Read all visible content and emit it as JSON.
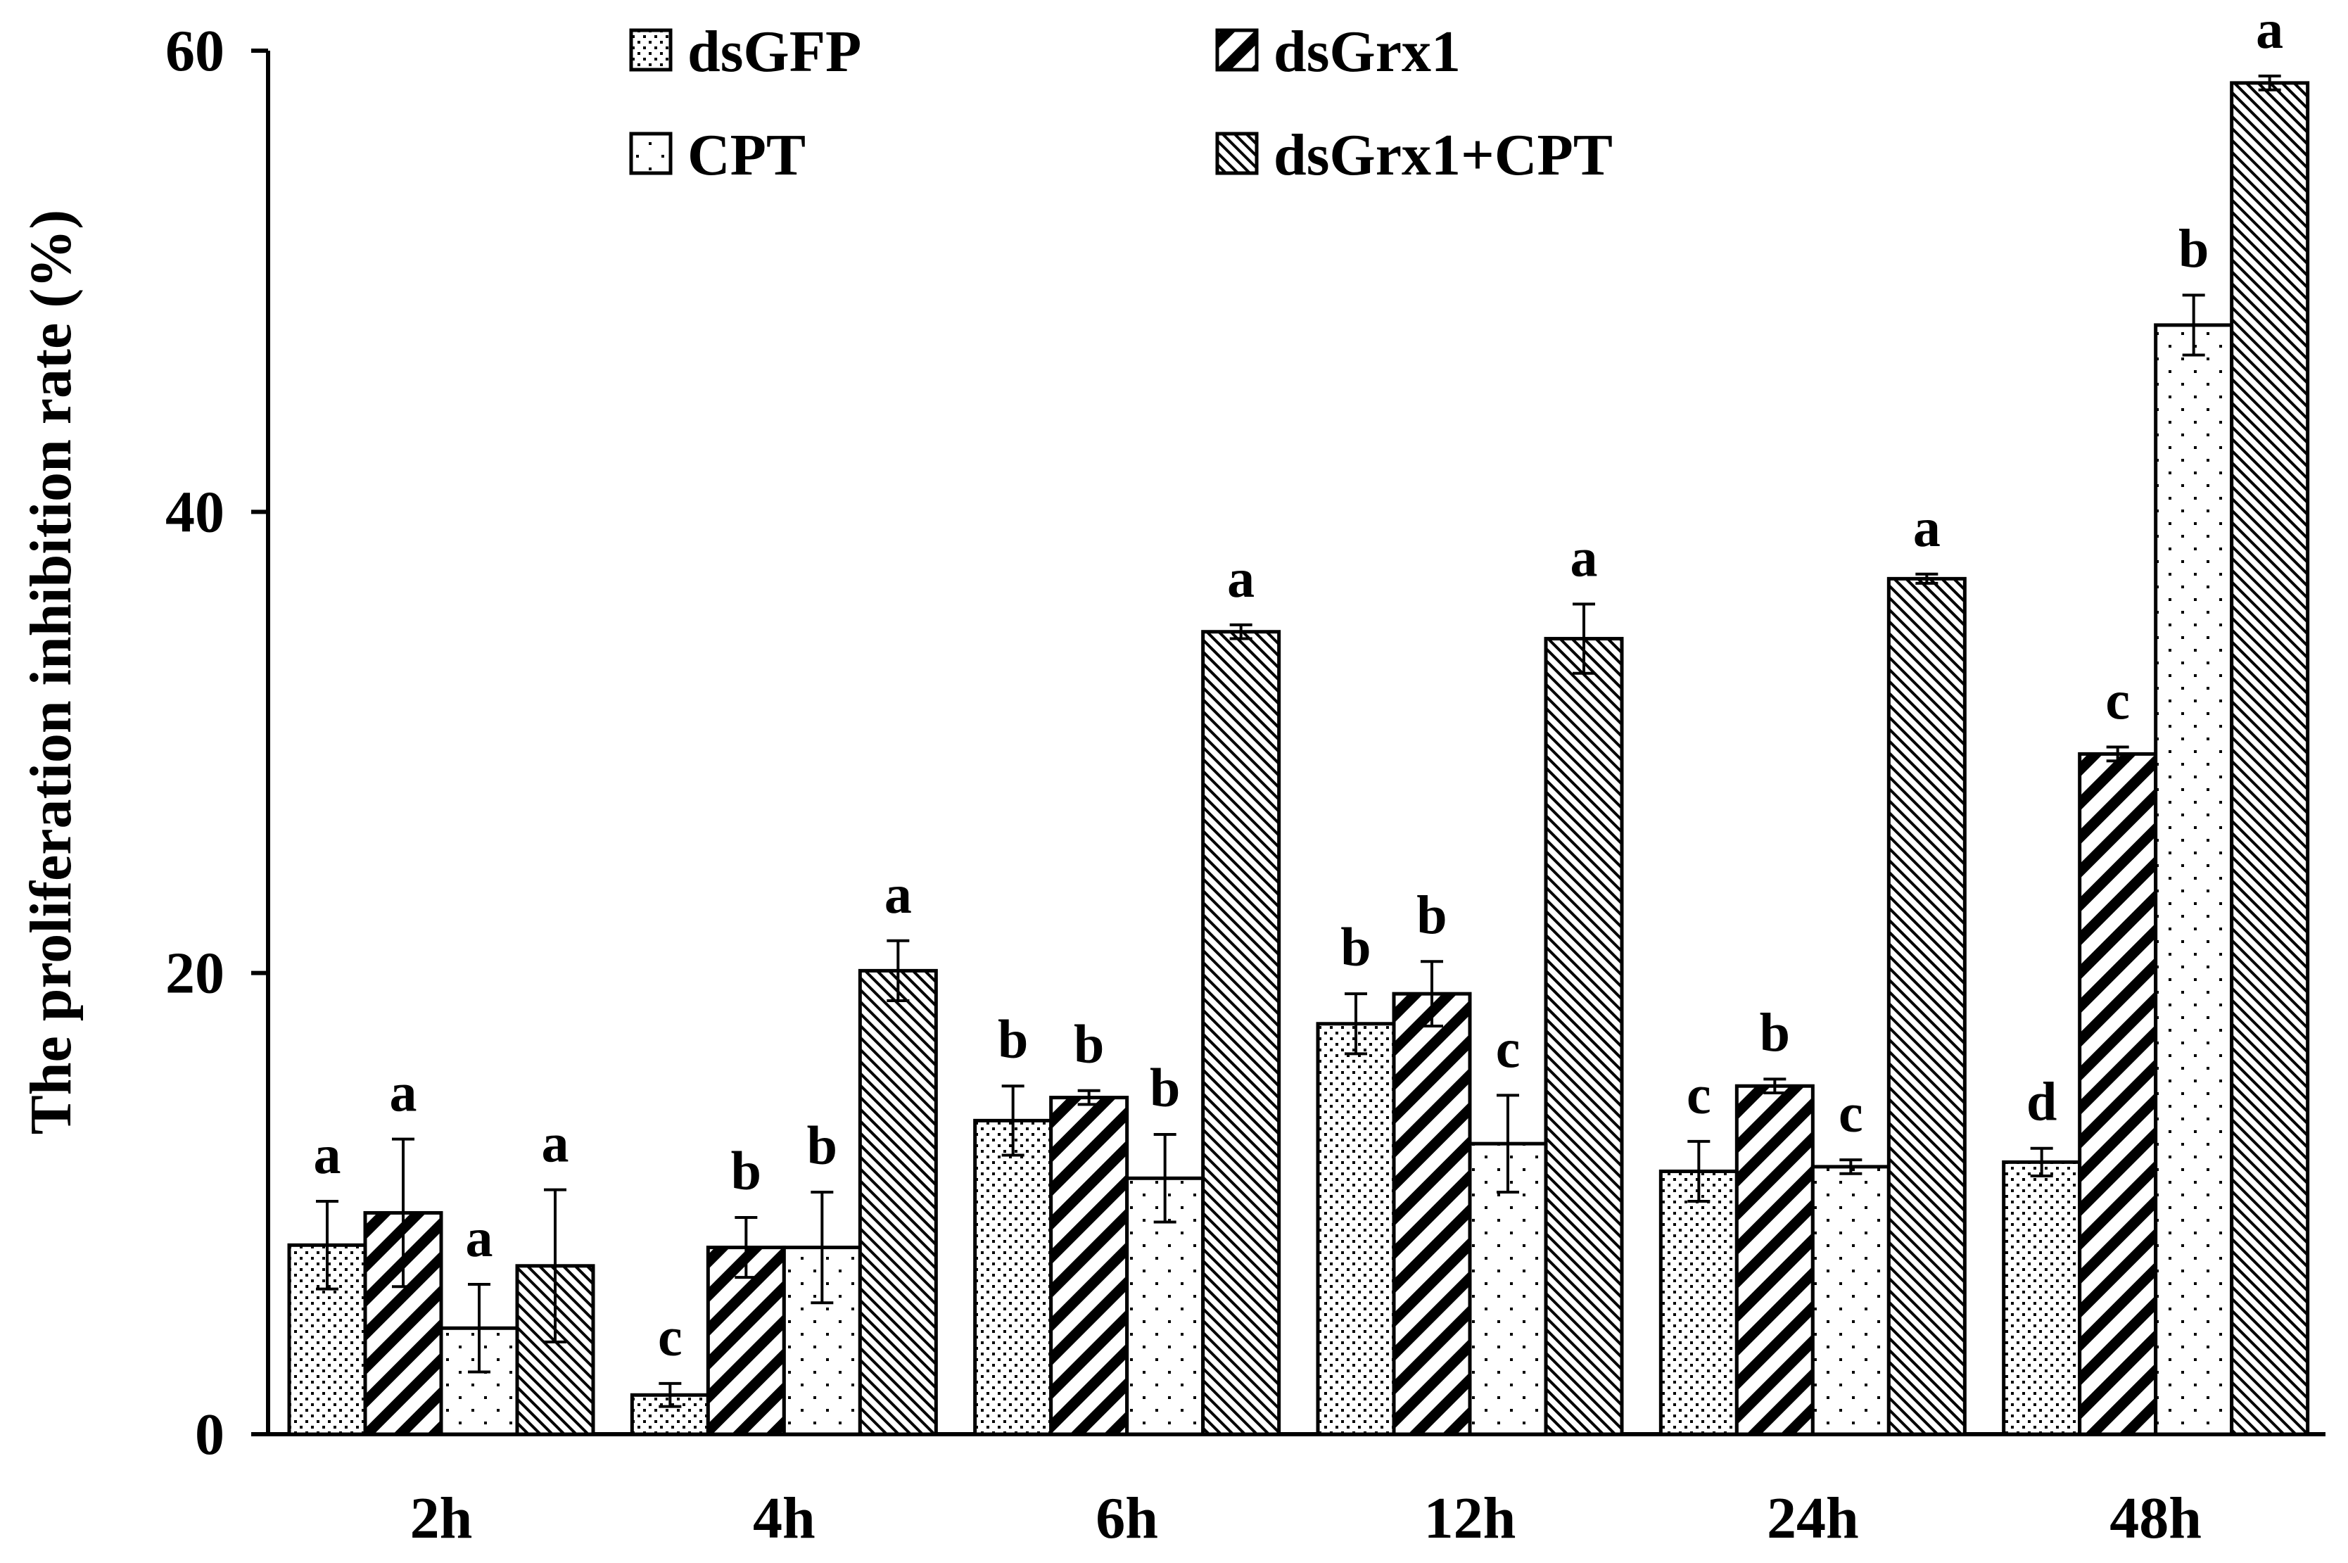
{
  "chart_data": {
    "type": "bar",
    "title": "",
    "xlabel": "",
    "ylabel": "The proliferation inhibition rate (%)",
    "ylim": [
      0,
      60
    ],
    "yticks": [
      0,
      20,
      40,
      60
    ],
    "grid": false,
    "legend_position": "top",
    "categories": [
      "2h",
      "4h",
      "6h",
      "12h",
      "24h",
      "48h"
    ],
    "series": [
      {
        "name": "dsGFP",
        "pattern": "dots",
        "values": [
          8.2,
          1.7,
          13.6,
          17.8,
          11.4,
          11.8
        ],
        "errors": [
          1.9,
          0.5,
          1.5,
          1.3,
          1.3,
          0.6
        ],
        "letters": [
          "a",
          "c",
          "b",
          "b",
          "c",
          "d"
        ]
      },
      {
        "name": "dsGrx1",
        "pattern": "wide-diagonal",
        "values": [
          9.6,
          8.1,
          14.6,
          19.1,
          15.1,
          29.5
        ],
        "errors": [
          3.2,
          1.3,
          0.3,
          1.4,
          0.3,
          0.3
        ],
        "letters": [
          "a",
          "b",
          "b",
          "b",
          "b",
          "c"
        ]
      },
      {
        "name": "CPT",
        "pattern": "sparse-dots",
        "values": [
          4.6,
          8.1,
          11.1,
          12.6,
          11.6,
          48.1
        ],
        "errors": [
          1.9,
          2.4,
          1.9,
          2.1,
          0.3,
          1.3
        ],
        "letters": [
          "a",
          "b",
          "b",
          "c",
          "c",
          "b"
        ]
      },
      {
        "name": "dsGrx1+CPT",
        "pattern": "fine-diagonal",
        "values": [
          7.3,
          20.1,
          34.8,
          34.5,
          37.1,
          58.6
        ],
        "errors": [
          3.3,
          1.3,
          0.3,
          1.5,
          0.2,
          0.3
        ],
        "letters": [
          "a",
          "a",
          "a",
          "a",
          "a",
          "a"
        ]
      }
    ]
  }
}
